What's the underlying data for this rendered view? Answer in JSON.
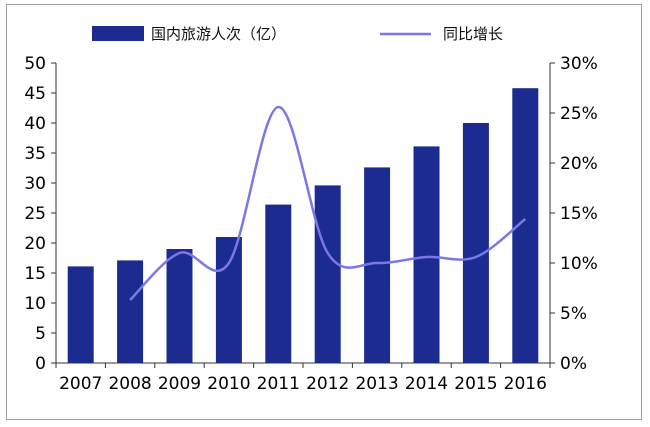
{
  "chart_data": {
    "type": "bar",
    "categories": [
      "2007",
      "2008",
      "2009",
      "2010",
      "2011",
      "2012",
      "2013",
      "2014",
      "2015",
      "2016"
    ],
    "series": [
      {
        "name": "国内旅游人次（亿）",
        "type": "bar",
        "axis": "left",
        "color": "#1c2b8f",
        "values": [
          16.1,
          17.1,
          19.0,
          21.0,
          26.4,
          29.6,
          32.6,
          36.1,
          40.0,
          45.8
        ]
      },
      {
        "name": "同比增长",
        "type": "line",
        "axis": "right",
        "color": "#7b78e6",
        "values": [
          null,
          6.3,
          11.0,
          10.0,
          25.6,
          11.0,
          10.0,
          10.6,
          10.6,
          14.4
        ]
      }
    ],
    "y_left": {
      "min": 0,
      "max": 50,
      "ticks": [
        "0",
        "5",
        "10",
        "15",
        "20",
        "25",
        "30",
        "35",
        "40",
        "45",
        "50"
      ]
    },
    "y_right": {
      "min": 0,
      "max": 30,
      "ticks": [
        "0%",
        "5%",
        "10%",
        "15%",
        "20%",
        "25%",
        "30%"
      ]
    },
    "grid": false,
    "legend": "top"
  }
}
